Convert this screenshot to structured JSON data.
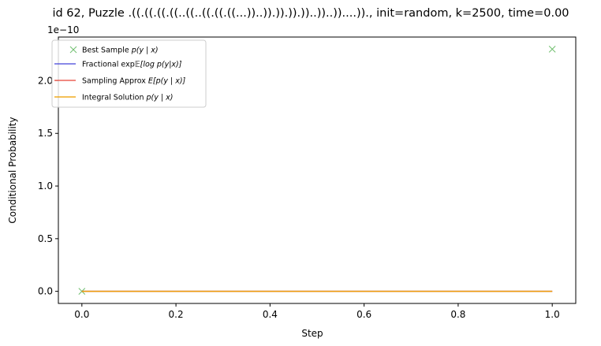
{
  "chart_data": {
    "type": "line",
    "title": "id 62, Puzzle .((.((.((.((..((..((.((.((...))..)).)).)).))..))..))....))., init=random, k=2500, time=0.00",
    "xlabel": "Step",
    "ylabel": "Conditional Probability",
    "y_offset_text": "1e−10",
    "xlim": [
      -0.05,
      1.05
    ],
    "ylim": [
      -0.115,
      2.415
    ],
    "y_scale_factor": 1e-10,
    "x_ticks": [
      0.0,
      0.2,
      0.4,
      0.6,
      0.8,
      1.0
    ],
    "x_tick_labels": [
      "0.0",
      "0.2",
      "0.4",
      "0.6",
      "0.8",
      "1.0"
    ],
    "y_ticks": [
      0.0,
      0.5,
      1.0,
      1.5,
      2.0
    ],
    "y_tick_labels": [
      "0.0",
      "0.5",
      "1.0",
      "1.5",
      "2.0"
    ],
    "legend_position": "top-left",
    "series": [
      {
        "name": "Best Sample p(y | x)",
        "kind": "marker",
        "color": "#4daf4a",
        "x": [
          0.0,
          1.0
        ],
        "y": [
          0.0,
          2.3
        ]
      },
      {
        "name": "Fractional exp E[log p(y|x)]",
        "kind": "line",
        "color": "#3b3bd9",
        "x": [
          0.0,
          1.0
        ],
        "y": [
          0.0,
          0.0
        ]
      },
      {
        "name": "Sampling Approx E[p(y | x)]",
        "kind": "line",
        "color": "#e8473a",
        "x": [
          0.0,
          1.0
        ],
        "y": [
          0.0,
          0.0
        ]
      },
      {
        "name": "Integral Solution p(y | x)",
        "kind": "line",
        "color": "#f0a30a",
        "x": [
          0.0,
          1.0
        ],
        "y": [
          0.0,
          0.0
        ]
      }
    ],
    "legend_labels": {
      "best_sample": {
        "prefix": "Best Sample ",
        "math": "p(y | x)"
      },
      "fractional": {
        "prefix": "Fractional exp",
        "math": "𝔼[log p(y|x)]"
      },
      "sampling": {
        "prefix": "Sampling Approx ",
        "math": "E[p(y | x)]"
      },
      "integral": {
        "prefix": "Integral Solution ",
        "math": "p(y | x)"
      }
    }
  }
}
